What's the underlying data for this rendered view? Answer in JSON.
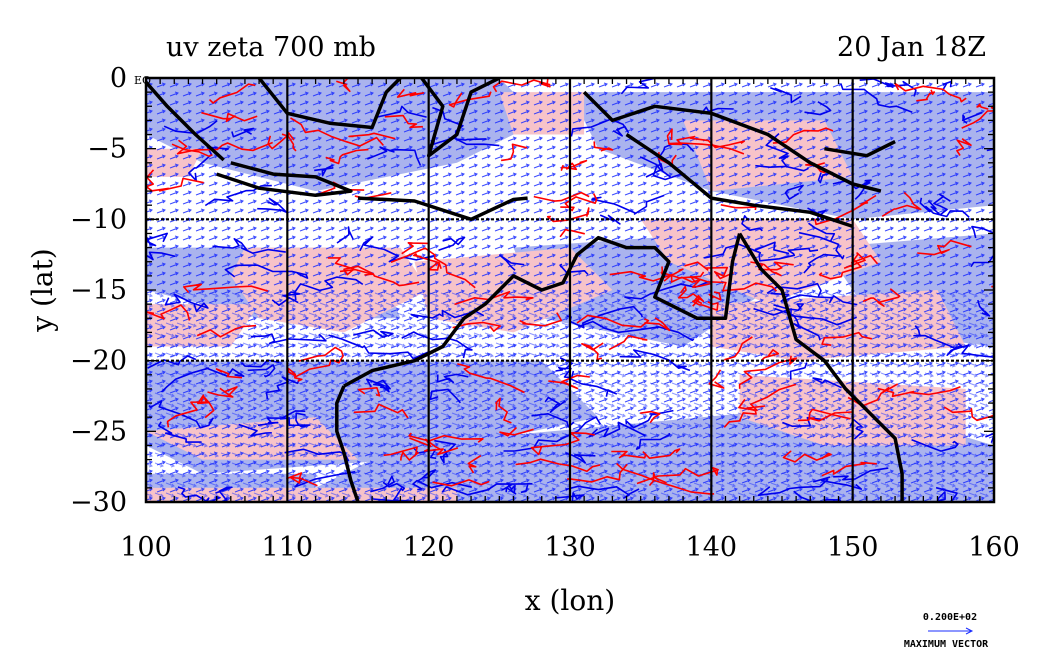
{
  "title_left": "uv zeta 700 mb",
  "title_right": "20 Jan 18Z",
  "eq_label": "EQ",
  "legend": {
    "scale_value": "0.200E+02",
    "label": "MAXIMUM VECTOR"
  },
  "colors": {
    "positive_fill": "#f7c3c9",
    "negative_fill": "#aab3ee",
    "positive_contour": "#ff0000",
    "negative_contour": "#0000ee",
    "vectors": "#1a2cff",
    "coast": "#000000"
  },
  "chart_data": {
    "type": "map",
    "projection": "lat-lon",
    "xlabel": "x (lon)",
    "ylabel": "y (lat)",
    "xlim": [
      100,
      160
    ],
    "ylim": [
      -30,
      0
    ],
    "x_ticks": [
      100,
      110,
      120,
      130,
      140,
      150,
      160
    ],
    "y_ticks": [
      0,
      -5,
      -10,
      -15,
      -20,
      -25,
      -30
    ],
    "x_tick_labels": [
      "100",
      "110",
      "120",
      "130",
      "140",
      "150",
      "160"
    ],
    "y_tick_labels": [
      "0",
      "−5",
      "−10",
      "−15",
      "−20",
      "−25",
      "−30"
    ],
    "grid_lon": [
      110,
      120,
      130,
      140,
      150
    ],
    "grid_lat": [
      -10,
      -20
    ],
    "fields": {
      "shaded": "relative vorticity (zeta)",
      "vectors": "wind (u, v)",
      "level": "700 mb"
    }
  }
}
